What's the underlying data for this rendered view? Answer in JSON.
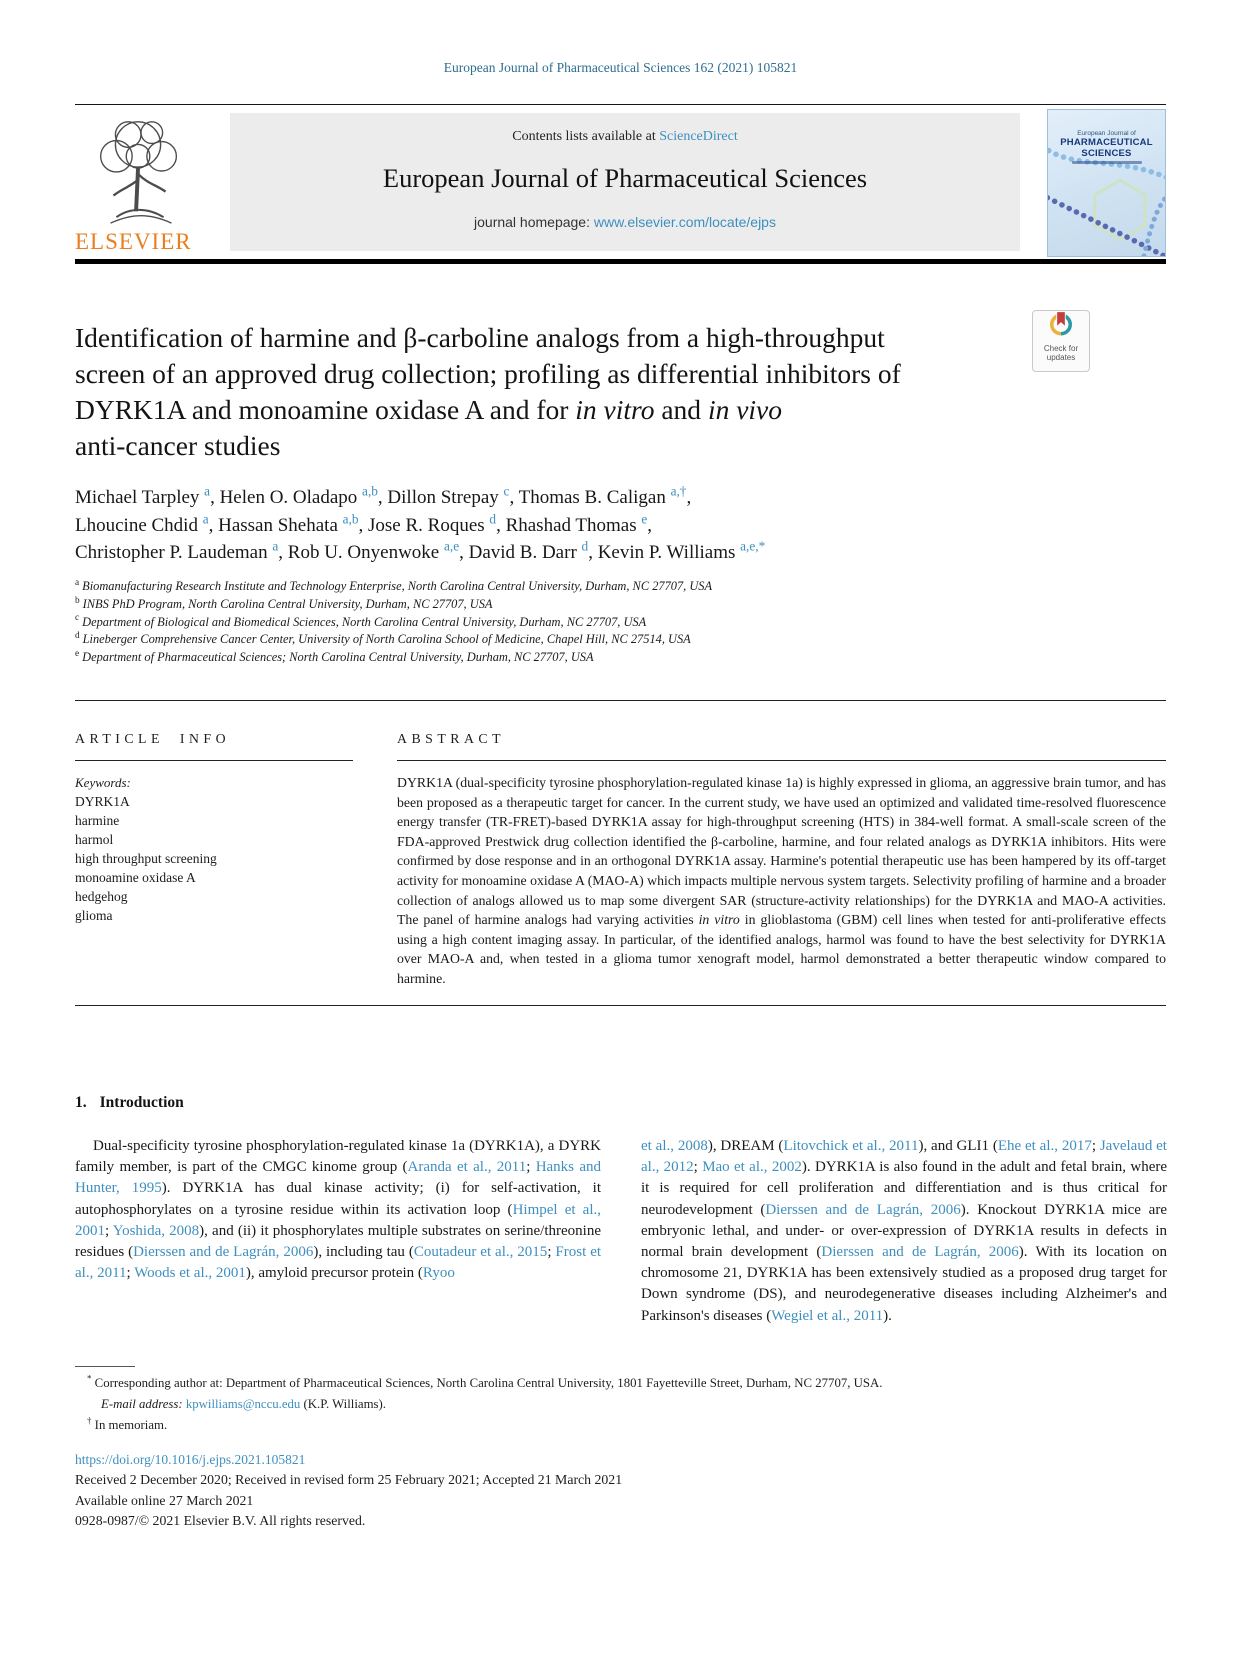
{
  "colors": {
    "link_blue": "#3e8fbe",
    "journal_ref_teal": "#2e6e90",
    "elsevier_orange": "#e87f1f",
    "cover_navy": "#16387c"
  },
  "page": {
    "journal_ref": "European Journal of Pharmaceutical Sciences 162 (2021) 105821"
  },
  "header": {
    "contents_prefix": "Contents lists available at ",
    "sciencedirect": "ScienceDirect",
    "journal_title": "European Journal of Pharmaceutical Sciences",
    "homepage_prefix": "journal homepage: ",
    "homepage_url": "www.elsevier.com/locate/ejps",
    "elsevier_wordmark": "ELSEVIER",
    "cover": {
      "line1": "European Journal of",
      "line2": "PHARMACEUTICAL",
      "line3": "SCIENCES"
    }
  },
  "badge": {
    "line1": "Check for",
    "line2": "updates"
  },
  "article": {
    "title": [
      {
        "t": "Identification of harmine and β-carboline analogs from a high-throughput"
      },
      {
        "br": true
      },
      {
        "t": "screen of an approved drug collection; profiling as differential inhibitors of"
      },
      {
        "br": true
      },
      {
        "t": "DYRK1A and monoamine oxidase A and for "
      },
      {
        "t": "in vitro",
        "s": "it"
      },
      {
        "t": " and "
      },
      {
        "t": "in vivo",
        "s": "it"
      },
      {
        "br": true
      },
      {
        "t": "anti-cancer studies"
      }
    ],
    "author_line1": [
      {
        "t": "Michael Tarpley "
      },
      {
        "t": "a",
        "s": "suplink",
        "n": "author-affiliation-ref"
      },
      {
        "t": ", Helen O. Oladapo "
      },
      {
        "t": "a,b",
        "s": "suplink",
        "n": "author-affiliation-ref"
      },
      {
        "t": ", Dillon Strepay "
      },
      {
        "t": "c",
        "s": "suplink",
        "n": "author-affiliation-ref"
      },
      {
        "t": ", Thomas B. Caligan "
      },
      {
        "t": "a,†",
        "s": "suplink",
        "n": "author-affiliation-ref"
      },
      {
        "t": ","
      }
    ],
    "author_line2": [
      {
        "t": "Lhoucine Chdid "
      },
      {
        "t": "a",
        "s": "suplink",
        "n": "author-affiliation-ref"
      },
      {
        "t": ", Hassan Shehata "
      },
      {
        "t": "a,b",
        "s": "suplink",
        "n": "author-affiliation-ref"
      },
      {
        "t": ", Jose R. Roques "
      },
      {
        "t": "d",
        "s": "suplink",
        "n": "author-affiliation-ref"
      },
      {
        "t": ", Rhashad Thomas "
      },
      {
        "t": "e",
        "s": "suplink",
        "n": "author-affiliation-ref"
      },
      {
        "t": ","
      }
    ],
    "author_line3": [
      {
        "t": "Christopher P. Laudeman "
      },
      {
        "t": "a",
        "s": "suplink",
        "n": "author-affiliation-ref"
      },
      {
        "t": ", Rob U. Onyenwoke "
      },
      {
        "t": "a,e",
        "s": "suplink",
        "n": "author-affiliation-ref"
      },
      {
        "t": ", David B. Darr "
      },
      {
        "t": "d",
        "s": "suplink",
        "n": "author-affiliation-ref"
      },
      {
        "t": ", Kevin P. Williams "
      },
      {
        "t": "a,e,*",
        "s": "suplink",
        "n": "author-affiliation-ref"
      }
    ],
    "affiliations": [
      {
        "sup": "a",
        "text": "Biomanufacturing Research Institute and Technology Enterprise, North Carolina Central University, Durham, NC 27707, USA"
      },
      {
        "sup": "b",
        "text": "INBS PhD Program, North Carolina Central University, Durham, NC 27707, USA"
      },
      {
        "sup": "c",
        "text": "Department of Biological and Biomedical Sciences, North Carolina Central University, Durham, NC 27707, USA"
      },
      {
        "sup": "d",
        "text": "Lineberger Comprehensive Cancer Center, University of North Carolina School of Medicine, Chapel Hill, NC 27514, USA"
      },
      {
        "sup": "e",
        "text": "Department of Pharmaceutical Sciences; North Carolina Central University, Durham, NC 27707, USA"
      }
    ]
  },
  "article_info": {
    "heading": "ARTICLE INFO",
    "keywords_label": "Keywords:",
    "keywords": [
      "DYRK1A",
      "harmine",
      "harmol",
      "high throughput screening",
      "monoamine oxidase A",
      "hedgehog",
      "glioma"
    ]
  },
  "abstract": {
    "heading": "ABSTRACT",
    "body": [
      {
        "t": "DYRK1A (dual-specificity tyrosine phosphorylation-regulated kinase 1a) is highly expressed in glioma, an aggressive brain tumor, and has been proposed as a therapeutic target for cancer. In the current study, we have used an optimized and validated time-resolved fluorescence energy transfer (TR-FRET)-based DYRK1A assay for high-throughput screening (HTS) in 384-well format. A small-scale screen of the FDA-approved Prestwick drug collection identified the β-carboline, harmine, and four related analogs as DYRK1A inhibitors. Hits were confirmed by dose response and in an orthogonal DYRK1A assay. Harmine's potential therapeutic use has been hampered by its off-target activity for monoamine oxidase A (MAO-A) which impacts multiple nervous system targets. Selectivity profiling of harmine and a broader collection of analogs allowed us to map some divergent SAR (structure-activity relationships) for the DYRK1A and MAO-A activities. The panel of harmine analogs had varying activities "
      },
      {
        "t": "in vitro",
        "s": "it"
      },
      {
        "t": " in glioblastoma (GBM) cell lines when tested for anti-proliferative effects using a high content imaging assay. In particular, of the identified analogs, harmol was found to have the best selectivity for DYRK1A over MAO-A and, when tested in a glioma tumor xenograft model, harmol demonstrated a better therapeutic window compared to harmine."
      }
    ]
  },
  "introduction": {
    "heading_number": "1.",
    "heading_text": "Introduction",
    "left_column": [
      {
        "t": "Dual-specificity tyrosine phosphorylation-regulated kinase 1a (DYRK1A), a DYRK family member, is part of the CMGC kinome group ("
      },
      {
        "t": "Aranda et al., 2011",
        "s": "link",
        "n": "citation-link"
      },
      {
        "t": "; "
      },
      {
        "t": "Hanks and Hunter, 1995",
        "s": "link",
        "n": "citation-link"
      },
      {
        "t": "). DYRK1A has dual kinase activity; (i) for self-activation, it autophosphorylates on a tyrosine residue within its activation loop ("
      },
      {
        "t": "Himpel et al., 2001",
        "s": "link",
        "n": "citation-link"
      },
      {
        "t": "; "
      },
      {
        "t": "Yoshida, 2008",
        "s": "link",
        "n": "citation-link"
      },
      {
        "t": "), and (ii) it phosphorylates multiple substrates on serine/threonine residues ("
      },
      {
        "t": "Dierssen and de Lagrán, 2006",
        "s": "link",
        "n": "citation-link"
      },
      {
        "t": "), including tau ("
      },
      {
        "t": "Coutadeur et al., 2015",
        "s": "link",
        "n": "citation-link"
      },
      {
        "t": "; "
      },
      {
        "t": "Frost et al., 2011",
        "s": "link",
        "n": "citation-link"
      },
      {
        "t": "; "
      },
      {
        "t": "Woods et al., 2001",
        "s": "link",
        "n": "citation-link"
      },
      {
        "t": "), amyloid precursor protein ("
      },
      {
        "t": "Ryoo",
        "s": "link",
        "n": "citation-link"
      }
    ],
    "right_column": [
      {
        "t": "et al., 2008",
        "s": "link",
        "n": "citation-link"
      },
      {
        "t": "), DREAM ("
      },
      {
        "t": "Litovchick et al., 2011",
        "s": "link",
        "n": "citation-link"
      },
      {
        "t": "), and GLI1 ("
      },
      {
        "t": "Ehe et al., 2017",
        "s": "link",
        "n": "citation-link"
      },
      {
        "t": "; "
      },
      {
        "t": "Javelaud et al., 2012",
        "s": "link",
        "n": "citation-link"
      },
      {
        "t": "; "
      },
      {
        "t": "Mao et al., 2002",
        "s": "link",
        "n": "citation-link"
      },
      {
        "t": "). DYRK1A is also found in the adult and fetal brain, where it is required for cell proliferation and differentiation and is thus critical for neurodevelopment ("
      },
      {
        "t": "Dierssen and de Lagrán, 2006",
        "s": "link",
        "n": "citation-link"
      },
      {
        "t": "). Knockout DYRK1A mice are embryonic lethal, and under- or over-expression of DYRK1A results in defects in normal brain development ("
      },
      {
        "t": "Dierssen and de Lagrán, 2006",
        "s": "link",
        "n": "citation-link"
      },
      {
        "t": "). With its location on chromosome 21, DYRK1A has been extensively studied as a proposed drug target for Down syndrome (DS), and neurodegenerative diseases including Alzheimer's and Parkinson's diseases ("
      },
      {
        "t": "Wegiel et al., 2011",
        "s": "link",
        "n": "citation-link"
      },
      {
        "t": ")."
      }
    ]
  },
  "footnotes": {
    "corresponding": [
      {
        "t": "*",
        "s": "sup"
      },
      {
        "t": " Corresponding author at: Department of Pharmaceutical Sciences, North Carolina Central University, 1801 Fayetteville Street, Durham, NC 27707, USA."
      }
    ],
    "email_line": [
      {
        "t": "E-mail address:",
        "s": "it"
      },
      {
        "t": " "
      },
      {
        "t": "kpwilliams@nccu.edu",
        "s": "link",
        "n": "email-link"
      },
      {
        "t": " (K.P. Williams)."
      }
    ],
    "memoriam": [
      {
        "t": "†",
        "s": "sup"
      },
      {
        "t": " In memoriam."
      }
    ]
  },
  "footer": {
    "doi": "https://doi.org/10.1016/j.ejps.2021.105821",
    "received": "Received 2 December 2020; Received in revised form 25 February 2021; Accepted 21 March 2021",
    "available": "Available online 27 March 2021",
    "copyright": "0928-0987/© 2021 Elsevier B.V. All rights reserved."
  }
}
